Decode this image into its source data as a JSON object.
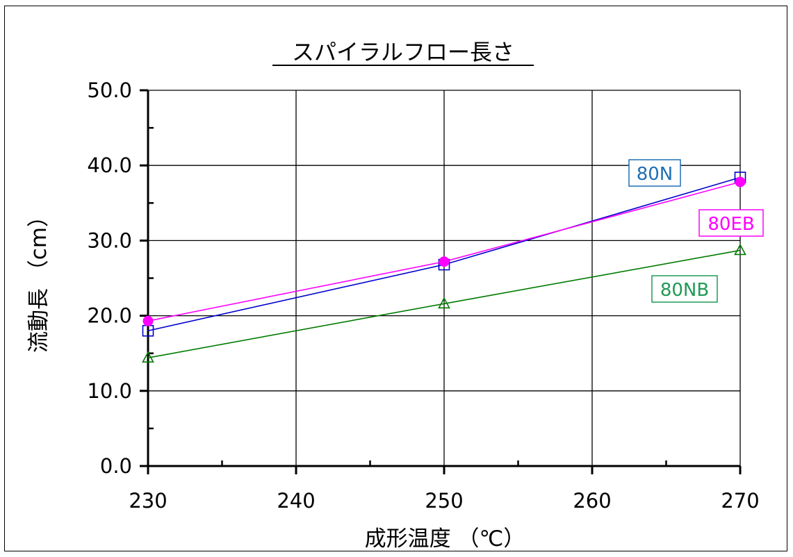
{
  "chart_data": {
    "type": "line",
    "title": "スパイラルフロー長さ",
    "xlabel": "成形温度 （℃）",
    "ylabel": "流動長 （cm）",
    "xlim": [
      230,
      270
    ],
    "ylim": [
      0,
      50
    ],
    "x_ticks": [
      230,
      240,
      250,
      260,
      270
    ],
    "y_ticks": [
      "0.0",
      "10.0",
      "20.0",
      "30.0",
      "40.0",
      "50.0"
    ],
    "grid": true,
    "legend": "inline labels near line ends",
    "x": [
      230,
      250,
      270
    ],
    "series": [
      {
        "name": "80N",
        "values": [
          18.0,
          26.8,
          38.4
        ],
        "color": "#0000cc",
        "label_color": "#1f6fb4",
        "marker": "square"
      },
      {
        "name": "80EB",
        "values": [
          19.3,
          27.2,
          37.8
        ],
        "color": "#ff00ff",
        "label_color": "#ff00ff",
        "marker": "circle"
      },
      {
        "name": "80NB",
        "values": [
          14.4,
          21.6,
          28.7
        ],
        "color": "#007a00",
        "label_color": "#1f9a55",
        "marker": "triangle"
      }
    ]
  }
}
